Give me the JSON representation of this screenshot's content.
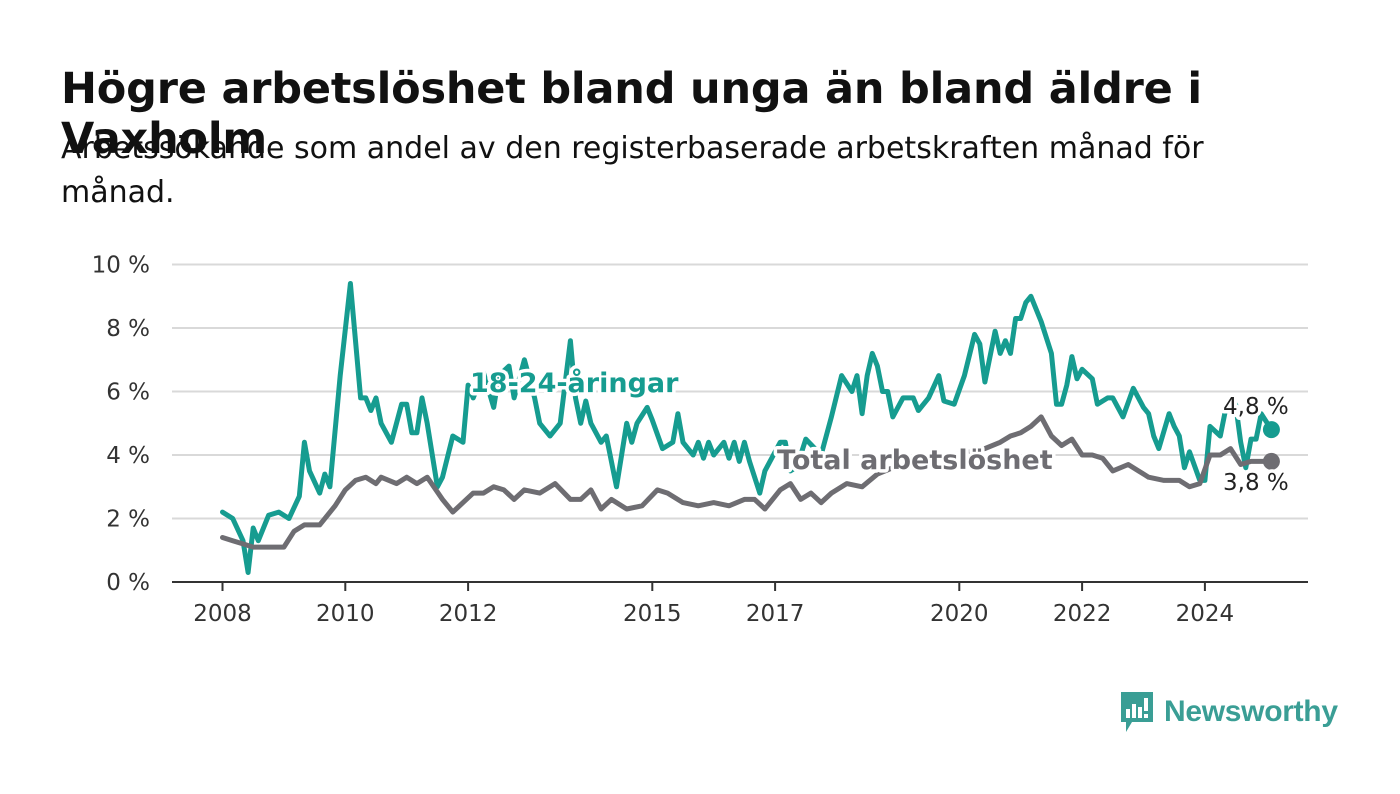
{
  "title": "Högre arbetslöshet bland unga än bland äldre i Vaxholm",
  "subtitle": "Arbetssökande som andel av den registerbaserade arbetskraften månad för månad.",
  "logo": {
    "text": "Newsworthy"
  },
  "colors": {
    "youth": "#169c90",
    "total": "#6e6d72",
    "grid": "#d9d9d9",
    "axis": "#333333"
  },
  "chart_data": {
    "type": "line",
    "title": "Högre arbetslöshet bland unga än bland äldre i Vaxholm",
    "subtitle": "Arbetssökande som andel av den registerbaserade arbetskraften månad för månad.",
    "xlabel": "",
    "ylabel": "",
    "x_ticks": [
      "2008",
      "2010",
      "2012",
      "2015",
      "2017",
      "2020",
      "2022",
      "2024"
    ],
    "y_ticks": [
      "0 %",
      "2 %",
      "4 %",
      "6 %",
      "8 %",
      "10 %"
    ],
    "ylim": [
      0,
      10
    ],
    "grid": true,
    "end_labels": [
      "4,8 %",
      "3,8 %"
    ],
    "series": [
      {
        "name": "18-24-åringar",
        "color": "#169c90",
        "points": [
          [
            "2008-01",
            2.2
          ],
          [
            "2008-03",
            2.0
          ],
          [
            "2008-05",
            1.3
          ],
          [
            "2008-06",
            0.3
          ],
          [
            "2008-07",
            1.7
          ],
          [
            "2008-08",
            1.3
          ],
          [
            "2008-10",
            2.1
          ],
          [
            "2008-12",
            2.2
          ],
          [
            "2009-02",
            2.0
          ],
          [
            "2009-04",
            2.7
          ],
          [
            "2009-05",
            4.4
          ],
          [
            "2009-06",
            3.5
          ],
          [
            "2009-08",
            2.8
          ],
          [
            "2009-09",
            3.4
          ],
          [
            "2009-10",
            3.0
          ],
          [
            "2009-12",
            6.5
          ],
          [
            "2010-02",
            9.4
          ],
          [
            "2010-04",
            5.8
          ],
          [
            "2010-05",
            5.8
          ],
          [
            "2010-06",
            5.4
          ],
          [
            "2010-07",
            5.8
          ],
          [
            "2010-08",
            5.0
          ],
          [
            "2010-10",
            4.4
          ],
          [
            "2010-12",
            5.6
          ],
          [
            "2011-01",
            5.6
          ],
          [
            "2011-02",
            4.7
          ],
          [
            "2011-03",
            4.7
          ],
          [
            "2011-04",
            5.8
          ],
          [
            "2011-05",
            5.0
          ],
          [
            "2011-07",
            3.0
          ],
          [
            "2011-08",
            3.3
          ],
          [
            "2011-10",
            4.6
          ],
          [
            "2011-12",
            4.4
          ],
          [
            "2012-01",
            6.2
          ],
          [
            "2012-02",
            5.8
          ],
          [
            "2012-04",
            6.6
          ],
          [
            "2012-06",
            5.5
          ],
          [
            "2012-07",
            6.5
          ],
          [
            "2012-09",
            6.8
          ],
          [
            "2012-10",
            5.8
          ],
          [
            "2012-12",
            7.0
          ],
          [
            "2013-02",
            5.8
          ],
          [
            "2013-03",
            5.0
          ],
          [
            "2013-05",
            4.6
          ],
          [
            "2013-07",
            5.0
          ],
          [
            "2013-09",
            7.6
          ],
          [
            "2013-10",
            5.8
          ],
          [
            "2013-11",
            5.0
          ],
          [
            "2013-12",
            5.7
          ],
          [
            "2014-01",
            5.0
          ],
          [
            "2014-03",
            4.4
          ],
          [
            "2014-04",
            4.6
          ],
          [
            "2014-06",
            3.0
          ],
          [
            "2014-08",
            5.0
          ],
          [
            "2014-09",
            4.4
          ],
          [
            "2014-10",
            5.0
          ],
          [
            "2014-12",
            5.5
          ],
          [
            "2015-01",
            5.1
          ],
          [
            "2015-03",
            4.2
          ],
          [
            "2015-05",
            4.4
          ],
          [
            "2015-06",
            5.3
          ],
          [
            "2015-07",
            4.4
          ],
          [
            "2015-09",
            4.0
          ],
          [
            "2015-10",
            4.4
          ],
          [
            "2015-11",
            3.9
          ],
          [
            "2015-12",
            4.4
          ],
          [
            "2016-01",
            4.0
          ],
          [
            "2016-03",
            4.4
          ],
          [
            "2016-04",
            3.9
          ],
          [
            "2016-05",
            4.4
          ],
          [
            "2016-06",
            3.8
          ],
          [
            "2016-07",
            4.4
          ],
          [
            "2016-08",
            3.8
          ],
          [
            "2016-10",
            2.8
          ],
          [
            "2016-11",
            3.5
          ],
          [
            "2017-02",
            4.4
          ],
          [
            "2017-03",
            4.4
          ],
          [
            "2017-04",
            3.5
          ],
          [
            "2017-05",
            3.6
          ],
          [
            "2017-06",
            4.0
          ],
          [
            "2017-07",
            4.5
          ],
          [
            "2017-10",
            4.0
          ],
          [
            "2017-12",
            5.2
          ],
          [
            "2018-02",
            6.5
          ],
          [
            "2018-04",
            6.0
          ],
          [
            "2018-05",
            6.5
          ],
          [
            "2018-06",
            5.3
          ],
          [
            "2018-07",
            6.5
          ],
          [
            "2018-08",
            7.2
          ],
          [
            "2018-09",
            6.8
          ],
          [
            "2018-10",
            6.0
          ],
          [
            "2018-11",
            6.0
          ],
          [
            "2018-12",
            5.2
          ],
          [
            "2019-02",
            5.8
          ],
          [
            "2019-04",
            5.8
          ],
          [
            "2019-05",
            5.4
          ],
          [
            "2019-07",
            5.8
          ],
          [
            "2019-09",
            6.5
          ],
          [
            "2019-10",
            5.7
          ],
          [
            "2019-12",
            5.6
          ],
          [
            "2020-02",
            6.5
          ],
          [
            "2020-04",
            7.8
          ],
          [
            "2020-05",
            7.5
          ],
          [
            "2020-06",
            6.3
          ],
          [
            "2020-08",
            7.9
          ],
          [
            "2020-09",
            7.2
          ],
          [
            "2020-10",
            7.6
          ],
          [
            "2020-11",
            7.2
          ],
          [
            "2020-12",
            8.3
          ],
          [
            "2021-01",
            8.3
          ],
          [
            "2021-02",
            8.8
          ],
          [
            "2021-03",
            9.0
          ],
          [
            "2021-05",
            8.2
          ],
          [
            "2021-07",
            7.2
          ],
          [
            "2021-08",
            5.6
          ],
          [
            "2021-09",
            5.6
          ],
          [
            "2021-10",
            6.2
          ],
          [
            "2021-11",
            7.1
          ],
          [
            "2021-12",
            6.4
          ],
          [
            "2022-01",
            6.7
          ],
          [
            "2022-03",
            6.4
          ],
          [
            "2022-04",
            5.6
          ],
          [
            "2022-06",
            5.8
          ],
          [
            "2022-07",
            5.8
          ],
          [
            "2022-09",
            5.2
          ],
          [
            "2022-11",
            6.1
          ],
          [
            "2023-01",
            5.5
          ],
          [
            "2023-02",
            5.3
          ],
          [
            "2023-03",
            4.6
          ],
          [
            "2023-04",
            4.2
          ],
          [
            "2023-06",
            5.3
          ],
          [
            "2023-07",
            4.9
          ],
          [
            "2023-08",
            4.6
          ],
          [
            "2023-09",
            3.6
          ],
          [
            "2023-10",
            4.1
          ],
          [
            "2023-12",
            3.2
          ],
          [
            "2024-01",
            3.2
          ],
          [
            "2024-02",
            4.9
          ],
          [
            "2024-04",
            4.6
          ],
          [
            "2024-05",
            5.4
          ],
          [
            "2024-06",
            5.4
          ],
          [
            "2024-07",
            5.6
          ],
          [
            "2024-08",
            4.4
          ],
          [
            "2024-09",
            3.6
          ],
          [
            "2024-10",
            4.5
          ],
          [
            "2024-11",
            4.5
          ],
          [
            "2024-12",
            5.3
          ],
          [
            "2025-02",
            4.8
          ]
        ]
      },
      {
        "name": "Total arbetslöshet",
        "color": "#6e6d72",
        "points": [
          [
            "2008-01",
            1.4
          ],
          [
            "2008-03",
            1.3
          ],
          [
            "2008-05",
            1.2
          ],
          [
            "2008-07",
            1.1
          ],
          [
            "2008-09",
            1.1
          ],
          [
            "2009-01",
            1.1
          ],
          [
            "2009-03",
            1.6
          ],
          [
            "2009-05",
            1.8
          ],
          [
            "2009-08",
            1.8
          ],
          [
            "2009-11",
            2.4
          ],
          [
            "2010-01",
            2.9
          ],
          [
            "2010-03",
            3.2
          ],
          [
            "2010-05",
            3.3
          ],
          [
            "2010-07",
            3.1
          ],
          [
            "2010-08",
            3.3
          ],
          [
            "2010-11",
            3.1
          ],
          [
            "2011-01",
            3.3
          ],
          [
            "2011-03",
            3.1
          ],
          [
            "2011-05",
            3.3
          ],
          [
            "2011-08",
            2.6
          ],
          [
            "2011-10",
            2.2
          ],
          [
            "2011-12",
            2.5
          ],
          [
            "2012-02",
            2.8
          ],
          [
            "2012-04",
            2.8
          ],
          [
            "2012-06",
            3.0
          ],
          [
            "2012-08",
            2.9
          ],
          [
            "2012-10",
            2.6
          ],
          [
            "2012-12",
            2.9
          ],
          [
            "2013-03",
            2.8
          ],
          [
            "2013-06",
            3.1
          ],
          [
            "2013-09",
            2.6
          ],
          [
            "2013-11",
            2.6
          ],
          [
            "2014-01",
            2.9
          ],
          [
            "2014-03",
            2.3
          ],
          [
            "2014-05",
            2.6
          ],
          [
            "2014-08",
            2.3
          ],
          [
            "2014-11",
            2.4
          ],
          [
            "2015-02",
            2.9
          ],
          [
            "2015-04",
            2.8
          ],
          [
            "2015-07",
            2.5
          ],
          [
            "2015-10",
            2.4
          ],
          [
            "2016-01",
            2.5
          ],
          [
            "2016-04",
            2.4
          ],
          [
            "2016-07",
            2.6
          ],
          [
            "2016-09",
            2.6
          ],
          [
            "2016-11",
            2.3
          ],
          [
            "2017-02",
            2.9
          ],
          [
            "2017-04",
            3.1
          ],
          [
            "2017-06",
            2.6
          ],
          [
            "2017-08",
            2.8
          ],
          [
            "2017-10",
            2.5
          ],
          [
            "2017-12",
            2.8
          ],
          [
            "2018-03",
            3.1
          ],
          [
            "2018-06",
            3.0
          ],
          [
            "2018-09",
            3.4
          ],
          [
            "2018-12",
            3.6
          ],
          [
            "2019-04",
            3.7
          ],
          [
            "2019-08",
            3.9
          ],
          [
            "2019-12",
            4.0
          ],
          [
            "2020-03",
            4.1
          ],
          [
            "2020-06",
            4.2
          ],
          [
            "2020-09",
            4.4
          ],
          [
            "2020-11",
            4.6
          ],
          [
            "2021-01",
            4.7
          ],
          [
            "2021-03",
            4.9
          ],
          [
            "2021-05",
            5.2
          ],
          [
            "2021-07",
            4.6
          ],
          [
            "2021-09",
            4.3
          ],
          [
            "2021-11",
            4.5
          ],
          [
            "2022-01",
            4.0
          ],
          [
            "2022-03",
            4.0
          ],
          [
            "2022-05",
            3.9
          ],
          [
            "2022-07",
            3.5
          ],
          [
            "2022-10",
            3.7
          ],
          [
            "2022-12",
            3.5
          ],
          [
            "2023-02",
            3.3
          ],
          [
            "2023-05",
            3.2
          ],
          [
            "2023-08",
            3.2
          ],
          [
            "2023-10",
            3.0
          ],
          [
            "2023-12",
            3.1
          ],
          [
            "2024-02",
            4.0
          ],
          [
            "2024-04",
            4.0
          ],
          [
            "2024-06",
            4.2
          ],
          [
            "2024-08",
            3.7
          ],
          [
            "2024-10",
            3.8
          ],
          [
            "2025-02",
            3.8
          ]
        ]
      }
    ]
  }
}
